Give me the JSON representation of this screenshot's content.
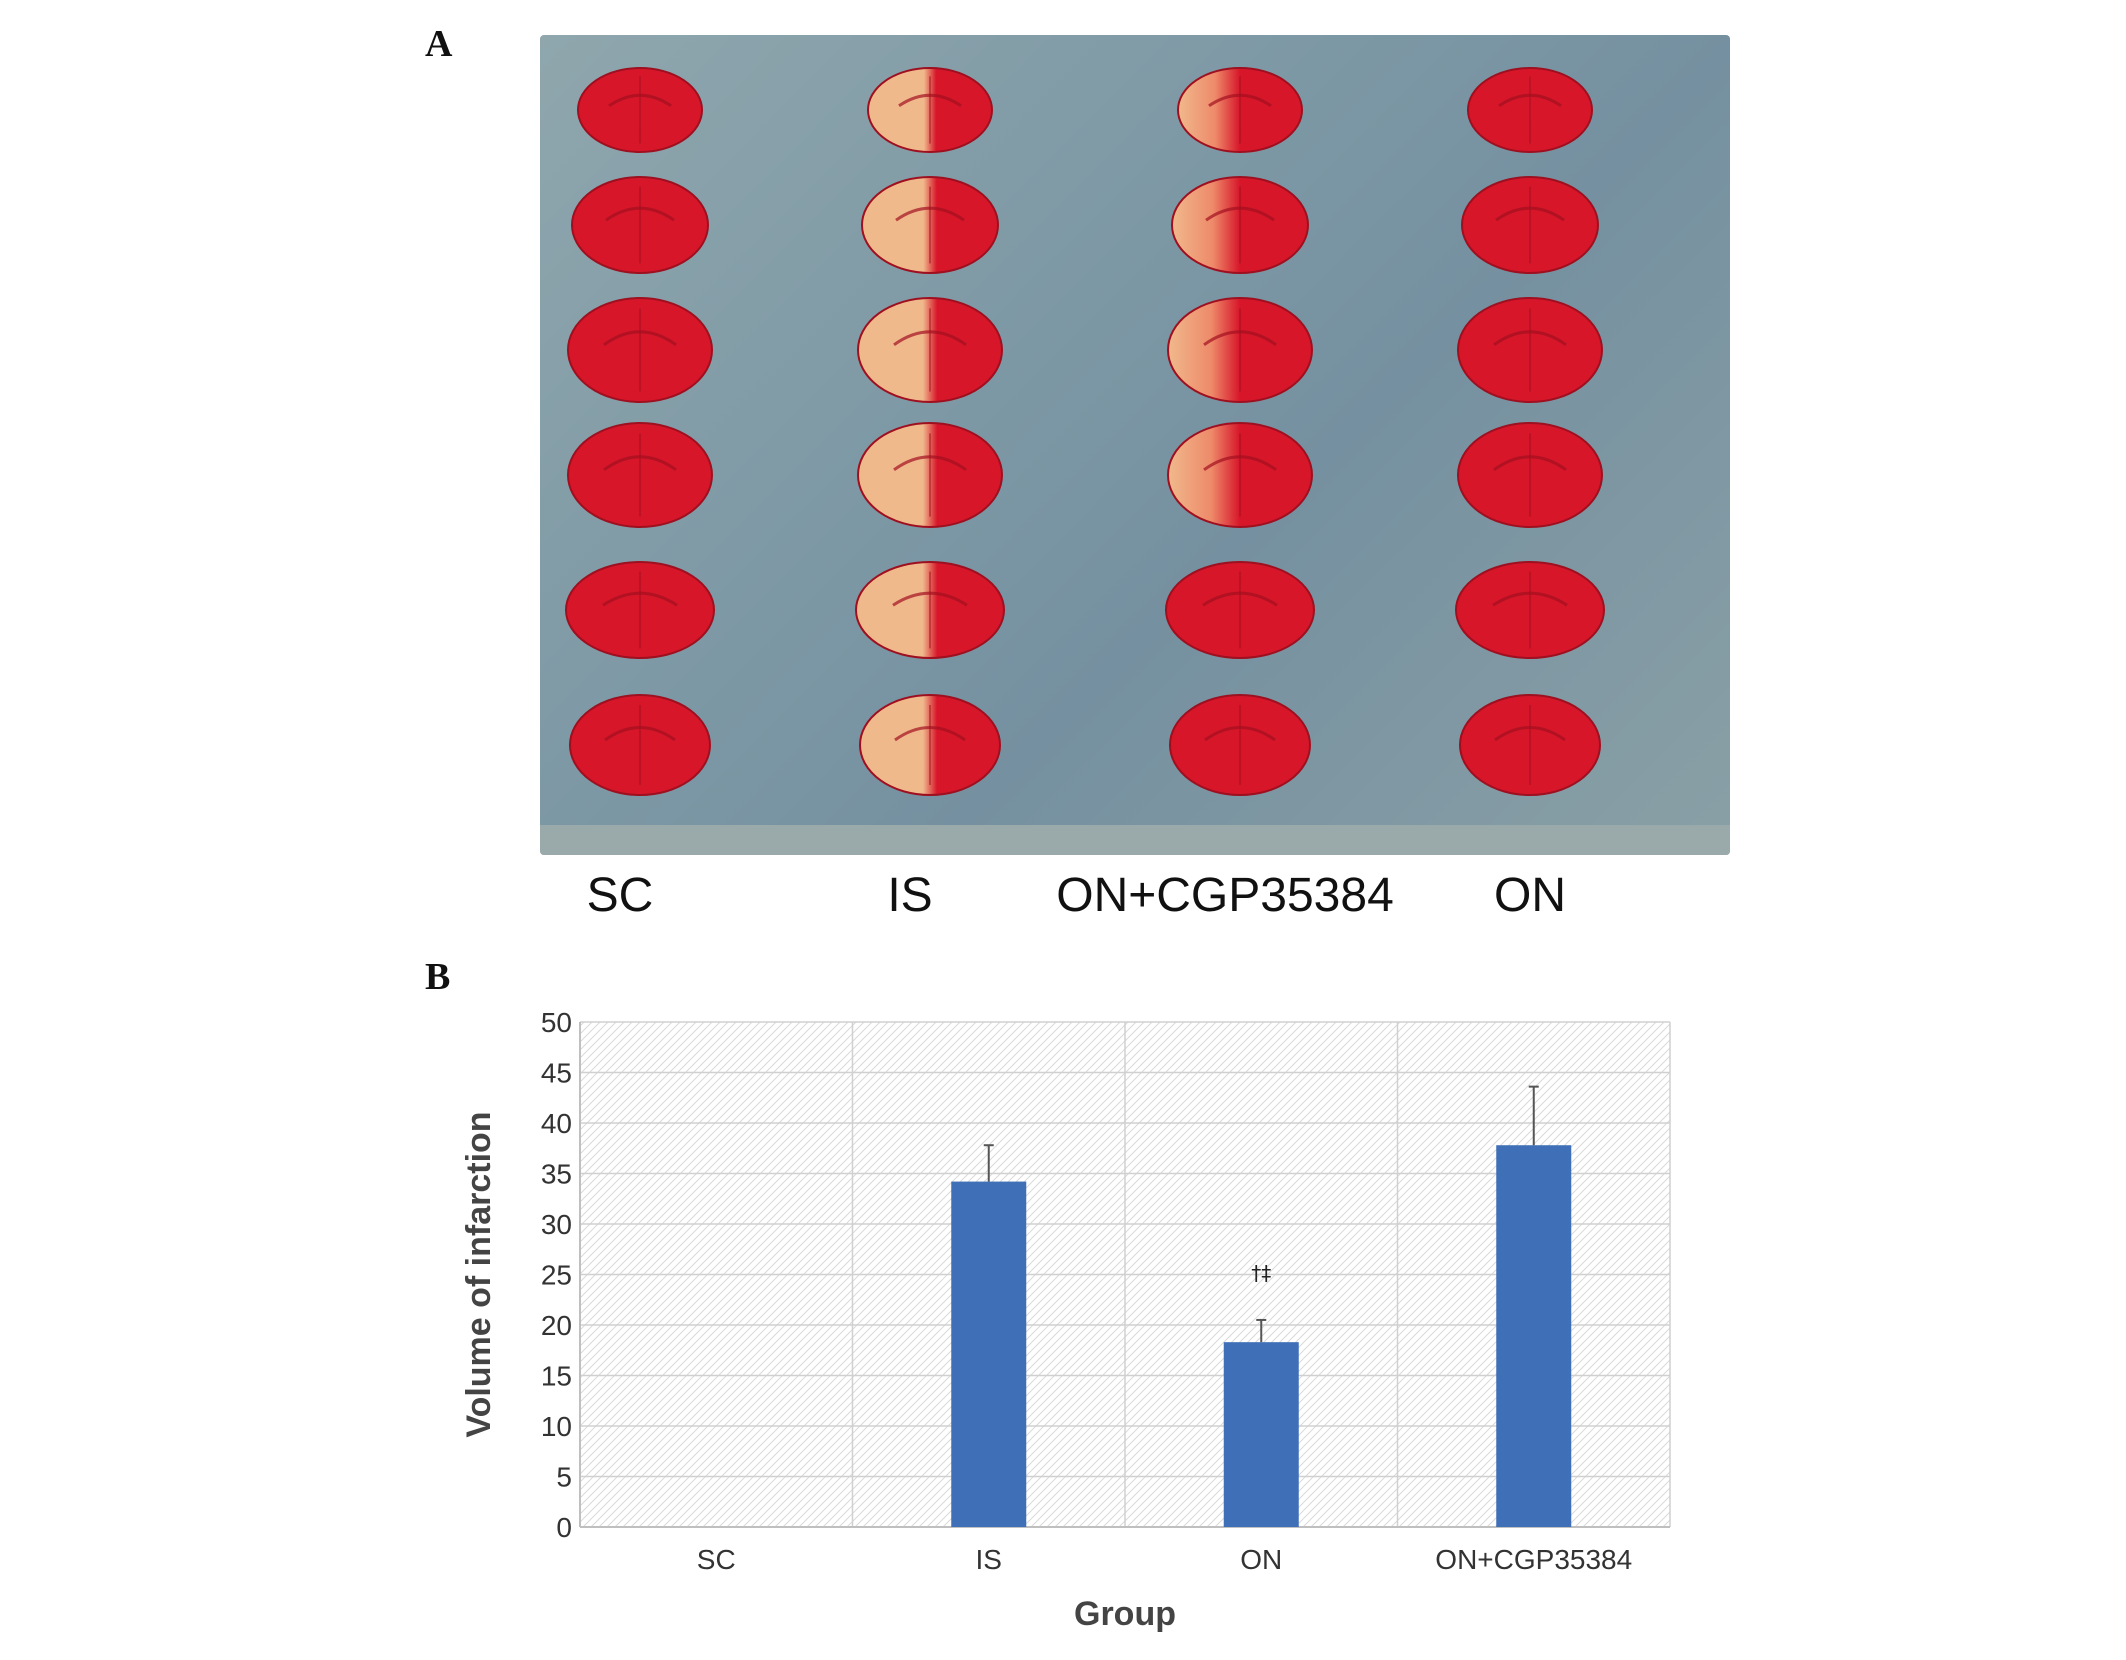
{
  "panel_a": {
    "letter": "A",
    "group_labels": [
      "SC",
      "IS",
      "ON+CGP35384",
      "ON"
    ],
    "colors": {
      "background": "#7f9aa6",
      "stained_tissue": "#d7162a",
      "infarct_tissue": "#f0b98c"
    }
  },
  "panel_b": {
    "letter": "B"
  },
  "chart_data": {
    "type": "bar",
    "categories": [
      "SC",
      "IS",
      "ON",
      "ON+CGP35384"
    ],
    "series": [
      {
        "values": [
          0,
          34.2,
          18.3,
          37.8
        ],
        "errors": [
          0,
          3.6,
          2.2,
          5.8
        ],
        "color": "#3f6fb7"
      }
    ],
    "annotations": [
      {
        "category": "ON",
        "text": "†‡"
      }
    ],
    "xlabel": "Group",
    "ylabel": "Volume of infarction",
    "ylim": [
      0,
      50
    ],
    "yticks": [
      0,
      5,
      10,
      15,
      20,
      25,
      30,
      35,
      40,
      45,
      50
    ],
    "grid": true,
    "legend": "none"
  }
}
